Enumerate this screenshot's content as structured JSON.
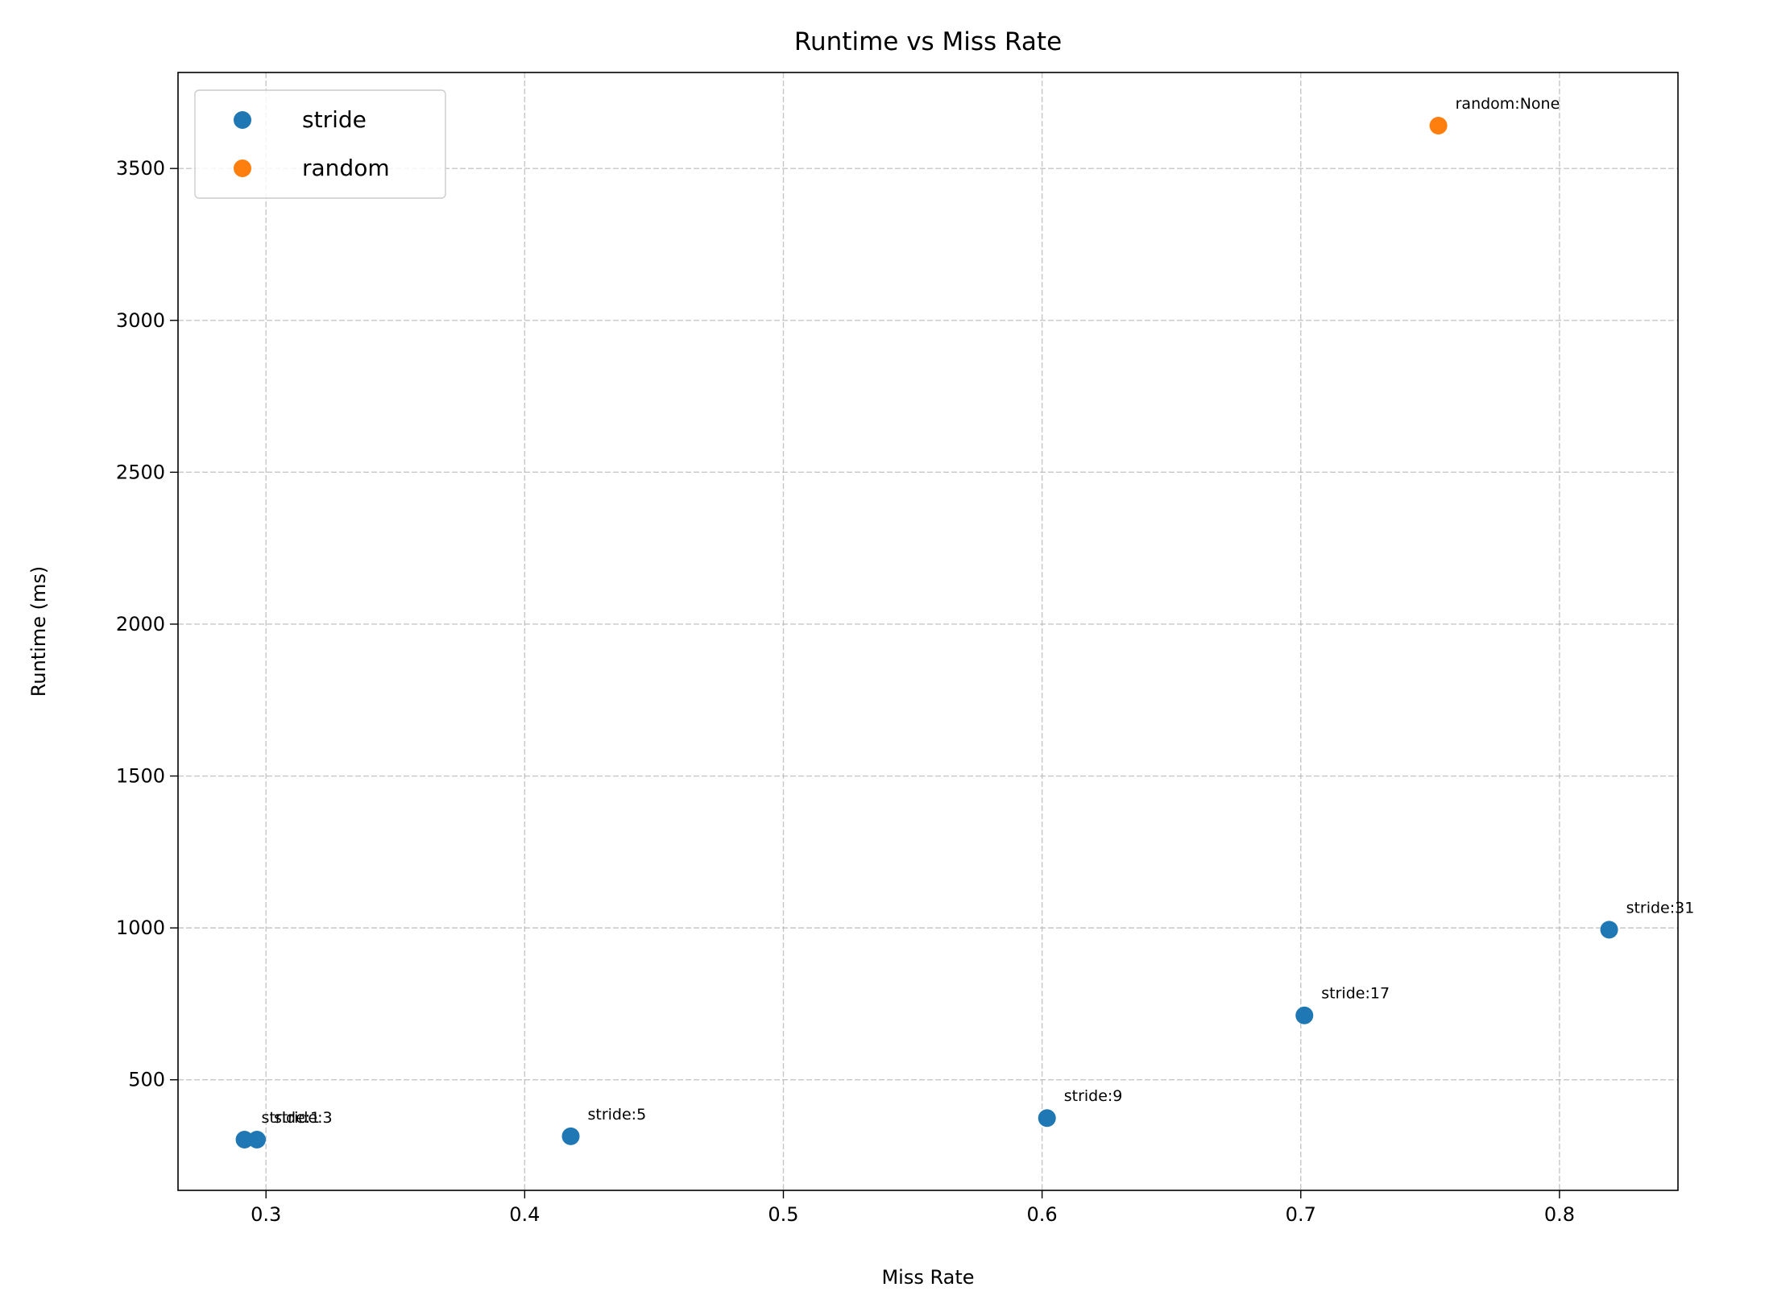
{
  "chart_data": {
    "type": "scatter",
    "title": "Runtime vs Miss Rate",
    "x_label": "Miss Rate",
    "y_label": "Runtime (ms)",
    "xlim": [
      0.266,
      0.8458
    ],
    "xticks": [
      0.3,
      0.4,
      0.5,
      0.6,
      0.7,
      0.8
    ],
    "ylim": [
      136,
      3816
    ],
    "yticks": [
      500,
      1000,
      1500,
      2000,
      2500,
      3000,
      3500
    ],
    "grid": true,
    "legend": "upper left",
    "series": [
      {
        "name": "stride",
        "color": "#1f77b4",
        "x": [
          0.2917,
          0.2965,
          0.4178,
          0.6019,
          0.7014,
          0.8192
        ],
        "values": [
          303,
          303,
          314,
          374,
          712,
          994
        ],
        "labels": [
          "stride:1",
          "stride:3",
          "stride:5",
          "stride:9",
          "stride:17",
          "stride:31"
        ]
      },
      {
        "name": "random",
        "color": "#ff7f0e",
        "x": [
          0.7532
        ],
        "values": [
          3641
        ],
        "labels": [
          "random:None"
        ]
      }
    ]
  }
}
